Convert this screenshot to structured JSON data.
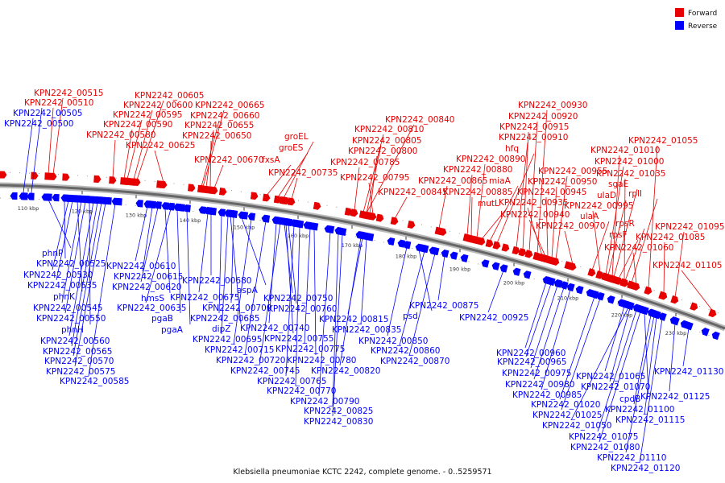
{
  "caption": "Klebsiella pneumoniae KCTC 2242, complete genome. - 0..5259571",
  "legend": [
    {
      "label": "Forward",
      "color": "#e60000"
    },
    {
      "label": "Reverse",
      "color": "#0000ff"
    }
  ],
  "colors": {
    "forward": "#e60000",
    "reverse": "#0000ff",
    "backbone": "#666666"
  },
  "ticks": [
    "110 kbp",
    "120 kbp",
    "130 kbp",
    "140 kbp",
    "150 kbp",
    "160 kbp",
    "170 kbp",
    "180 kbp",
    "190 kbp",
    "200 kbp",
    "210 kbp",
    "220 kbp",
    "230 kbp"
  ],
  "forward_labels": [
    {
      "text": "KPN2242_00515",
      "ax": 42,
      "ay": 119,
      "gx": 66,
      "gy": 230
    },
    {
      "text": "KPN2242_00510",
      "ax": 30,
      "ay": 131,
      "gx": 60,
      "gy": 228
    },
    {
      "text": "KPN2242_00605",
      "ax": 167,
      "ay": 122,
      "gx": 170,
      "gy": 240
    },
    {
      "text": "KPN2242_00600",
      "ax": 153,
      "ay": 134,
      "gx": 166,
      "gy": 239
    },
    {
      "text": "KPN2242_00595",
      "ax": 140,
      "ay": 146,
      "gx": 158,
      "gy": 238
    },
    {
      "text": "KPN2242_00590",
      "ax": 128,
      "ay": 158,
      "gx": 154,
      "gy": 237
    },
    {
      "text": "KPN2242_00580",
      "ax": 107,
      "ay": 171,
      "gx": 140,
      "gy": 236
    },
    {
      "text": "KPN2242_00625",
      "ax": 156,
      "ay": 184,
      "gx": 203,
      "gy": 243
    },
    {
      "text": "KPN2242_00665",
      "ax": 242,
      "ay": 134,
      "gx": 252,
      "gy": 250
    },
    {
      "text": "KPN2242_00660",
      "ax": 236,
      "ay": 147,
      "gx": 250,
      "gy": 250
    },
    {
      "text": "KPN2242_00655",
      "ax": 229,
      "ay": 159,
      "gx": 256,
      "gy": 251
    },
    {
      "text": "KPN2242_00650",
      "ax": 226,
      "ay": 172,
      "gx": 261,
      "gy": 252
    },
    {
      "text": "KPN2242_00670",
      "ax": 241,
      "ay": 202,
      "gx": 266,
      "gy": 252
    },
    {
      "text": "fxsA",
      "ax": 325,
      "ay": 202,
      "gx": 331,
      "gy": 264
    },
    {
      "text": "groEL",
      "ax": 353,
      "ay": 173,
      "gx": 352,
      "gy": 268
    },
    {
      "text": "groES",
      "ax": 346,
      "ay": 187,
      "gx": 345,
      "gy": 267
    },
    {
      "text": "KPN2242_00735",
      "ax": 333,
      "ay": 218,
      "gx": 362,
      "gy": 270
    },
    {
      "text": "KPN2242_00840",
      "ax": 478,
      "ay": 152,
      "gx": 455,
      "gy": 282
    },
    {
      "text": "KPN2242_00810",
      "ax": 440,
      "ay": 164,
      "gx": 451,
      "gy": 281
    },
    {
      "text": "KPN2242_00805",
      "ax": 437,
      "ay": 178,
      "gx": 455,
      "gy": 282
    },
    {
      "text": "KPN2242_00800",
      "ax": 432,
      "ay": 191,
      "gx": 459,
      "gy": 282
    },
    {
      "text": "KPN2242_00785",
      "ax": 410,
      "ay": 205,
      "gx": 440,
      "gy": 279
    },
    {
      "text": "KPN2242_00795",
      "ax": 422,
      "ay": 224,
      "gx": 463,
      "gy": 283
    },
    {
      "text": "KPN2242_00845",
      "ax": 469,
      "ay": 242,
      "gx": 490,
      "gy": 297
    },
    {
      "text": "KPN2242_00930",
      "ax": 643,
      "ay": 134,
      "gx": 667,
      "gy": 327
    },
    {
      "text": "KPN2242_00920",
      "ax": 631,
      "ay": 148,
      "gx": 657,
      "gy": 326
    },
    {
      "text": "KPN2242_00915",
      "ax": 620,
      "ay": 161,
      "gx": 649,
      "gy": 324
    },
    {
      "text": "KPN2242_00910",
      "ax": 619,
      "ay": 174,
      "gx": 641,
      "gy": 323
    },
    {
      "text": "hfq",
      "ax": 627,
      "ay": 188,
      "gx": 617,
      "gy": 316
    },
    {
      "text": "KPN2242_00890",
      "ax": 566,
      "ay": 201,
      "gx": 592,
      "gy": 313
    },
    {
      "text": "KPN2242_00880",
      "ax": 550,
      "ay": 214,
      "gx": 580,
      "gy": 312
    },
    {
      "text": "KPN2242_00865",
      "ax": 519,
      "ay": 228,
      "gx": 545,
      "gy": 307
    },
    {
      "text": "miaA",
      "ax": 607,
      "ay": 228,
      "gx": 608,
      "gy": 315
    },
    {
      "text": "KPN2242_00885",
      "ax": 550,
      "ay": 242,
      "gx": 585,
      "gy": 313
    },
    {
      "text": "KPN2242_00935",
      "ax": 619,
      "ay": 255,
      "gx": 673,
      "gy": 330
    },
    {
      "text": "mutL",
      "ax": 593,
      "ay": 256,
      "gx": 598,
      "gy": 314
    },
    {
      "text": "KPN2242_00955",
      "ax": 668,
      "ay": 216,
      "gx": 690,
      "gy": 337
    },
    {
      "text": "KPN2242_00950",
      "ax": 655,
      "ay": 229,
      "gx": 685,
      "gy": 334
    },
    {
      "text": "KPN2242_00945",
      "ax": 642,
      "ay": 242,
      "gx": 680,
      "gy": 332
    },
    {
      "text": "KPN2242_00940",
      "ax": 621,
      "ay": 270,
      "gx": 677,
      "gy": 331
    },
    {
      "text": "KPN2242_00970",
      "ax": 665,
      "ay": 284,
      "gx": 711,
      "gy": 348
    },
    {
      "text": "KPN2242_01055",
      "ax": 780,
      "ay": 178,
      "gx": 805,
      "gy": 370
    },
    {
      "text": "KPN2242_01010",
      "ax": 733,
      "ay": 190,
      "gx": 760,
      "gy": 356
    },
    {
      "text": "KPN2242_01000",
      "ax": 738,
      "ay": 204,
      "gx": 752,
      "gy": 355
    },
    {
      "text": "KPN2242_01035",
      "ax": 740,
      "ay": 219,
      "gx": 775,
      "gy": 362
    },
    {
      "text": "sgaE",
      "ax": 755,
      "ay": 232,
      "gx": 762,
      "gy": 357
    },
    {
      "text": "ulaD",
      "ax": 741,
      "ay": 246,
      "gx": 755,
      "gy": 356
    },
    {
      "text": "rplI",
      "ax": 780,
      "ay": 244,
      "gx": 784,
      "gy": 364
    },
    {
      "text": "KPN2242_00995",
      "ax": 700,
      "ay": 259,
      "gx": 745,
      "gy": 354
    },
    {
      "text": "ulaA",
      "ax": 720,
      "ay": 272,
      "gx": 735,
      "gy": 352
    },
    {
      "text": "rpsR",
      "ax": 764,
      "ay": 281,
      "gx": 776,
      "gy": 363
    },
    {
      "text": "rpsF",
      "ax": 756,
      "ay": 295,
      "gx": 768,
      "gy": 361
    },
    {
      "text": "KPN2242_01095",
      "ax": 813,
      "ay": 285,
      "gx": 838,
      "gy": 383
    },
    {
      "text": "KPN2242_01085",
      "ax": 789,
      "ay": 298,
      "gx": 824,
      "gy": 379
    },
    {
      "text": "KPN2242_01060",
      "ax": 750,
      "ay": 311,
      "gx": 790,
      "gy": 367
    },
    {
      "text": "KPN2242_01105",
      "ax": 810,
      "ay": 333,
      "gx": 885,
      "gy": 400
    }
  ],
  "reverse_labels": [
    {
      "text": "KPN2242_00505",
      "ax": 16,
      "ay": 144,
      "gx": 38,
      "gy": 238
    },
    {
      "text": "KPN2242_00500",
      "ax": 5,
      "ay": 157,
      "gx": 28,
      "gy": 236
    },
    {
      "text": "phnP",
      "ax": 52,
      "ay": 318,
      "gx": 60,
      "gy": 247
    },
    {
      "text": "KPN2242_00525",
      "ax": 45,
      "ay": 331,
      "gx": 80,
      "gy": 250
    },
    {
      "text": "KPN2242_00530",
      "ax": 29,
      "ay": 345,
      "gx": 85,
      "gy": 251
    },
    {
      "text": "KPN2242_00535",
      "ax": 34,
      "ay": 358,
      "gx": 90,
      "gy": 252
    },
    {
      "text": "phnK",
      "ax": 66,
      "ay": 372,
      "gx": 96,
      "gy": 253
    },
    {
      "text": "KPN2242_00545",
      "ax": 41,
      "ay": 386,
      "gx": 101,
      "gy": 254
    },
    {
      "text": "KPN2242_00550",
      "ax": 45,
      "ay": 399,
      "gx": 106,
      "gy": 255
    },
    {
      "text": "phnH",
      "ax": 76,
      "ay": 413,
      "gx": 111,
      "gy": 256
    },
    {
      "text": "KPN2242_00560",
      "ax": 50,
      "ay": 427,
      "gx": 116,
      "gy": 257
    },
    {
      "text": "KPN2242_00565",
      "ax": 53,
      "ay": 440,
      "gx": 121,
      "gy": 258
    },
    {
      "text": "KPN2242_00570",
      "ax": 55,
      "ay": 452,
      "gx": 126,
      "gy": 259
    },
    {
      "text": "KPN2242_00575",
      "ax": 57,
      "ay": 465,
      "gx": 131,
      "gy": 260
    },
    {
      "text": "KPN2242_00585",
      "ax": 74,
      "ay": 477,
      "gx": 143,
      "gy": 262
    },
    {
      "text": "KPN2242_00610",
      "ax": 132,
      "ay": 334,
      "gx": 183,
      "gy": 268
    },
    {
      "text": "KPN2242_00615",
      "ax": 141,
      "ay": 347,
      "gx": 189,
      "gy": 269
    },
    {
      "text": "KPN2242_00620",
      "ax": 139,
      "ay": 360,
      "gx": 196,
      "gy": 270
    },
    {
      "text": "hmsS",
      "ax": 175,
      "ay": 374,
      "gx": 205,
      "gy": 272
    },
    {
      "text": "KPN2242_00635",
      "ax": 145,
      "ay": 386,
      "gx": 212,
      "gy": 273
    },
    {
      "text": "pgaB",
      "ax": 188,
      "ay": 399,
      "gx": 220,
      "gy": 275
    },
    {
      "text": "pgaA",
      "ax": 200,
      "ay": 413,
      "gx": 232,
      "gy": 277
    },
    {
      "text": "KPN2242_00680",
      "ax": 226,
      "ay": 352,
      "gx": 262,
      "gy": 282
    },
    {
      "text": "KPN2242_00675",
      "ax": 211,
      "ay": 373,
      "gx": 258,
      "gy": 281
    },
    {
      "text": "aspA",
      "ax": 294,
      "ay": 364,
      "gx": 300,
      "gy": 290
    },
    {
      "text": "KPN2242_00700",
      "ax": 251,
      "ay": 386,
      "gx": 290,
      "gy": 288
    },
    {
      "text": "KPN2242_00685",
      "ax": 236,
      "ay": 399,
      "gx": 275,
      "gy": 285
    },
    {
      "text": "dipZ",
      "ax": 263,
      "ay": 412,
      "gx": 286,
      "gy": 287
    },
    {
      "text": "KPN2242_00695",
      "ax": 239,
      "ay": 425,
      "gx": 283,
      "gy": 286
    },
    {
      "text": "KPN2242_00715",
      "ax": 254,
      "ay": 438,
      "gx": 312,
      "gy": 292
    },
    {
      "text": "KPN2242_00720",
      "ax": 268,
      "ay": 451,
      "gx": 330,
      "gy": 295
    },
    {
      "text": "KPN2242_00745",
      "ax": 286,
      "ay": 464,
      "gx": 348,
      "gy": 298
    },
    {
      "text": "KPN2242_00765",
      "ax": 319,
      "ay": 477,
      "gx": 365,
      "gy": 301
    },
    {
      "text": "KPN2242_00770",
      "ax": 331,
      "ay": 489,
      "gx": 372,
      "gy": 302
    },
    {
      "text": "KPN2242_00740",
      "ax": 298,
      "ay": 411,
      "gx": 343,
      "gy": 297
    },
    {
      "text": "KPN2242_00750",
      "ax": 327,
      "ay": 374,
      "gx": 353,
      "gy": 299
    },
    {
      "text": "KPN2242_00760",
      "ax": 332,
      "ay": 387,
      "gx": 358,
      "gy": 300
    },
    {
      "text": "KPN2242_00755",
      "ax": 328,
      "ay": 424,
      "gx": 355,
      "gy": 299
    },
    {
      "text": "KPN2242_00775",
      "ax": 342,
      "ay": 437,
      "gx": 385,
      "gy": 305
    },
    {
      "text": "KPN2242_00780",
      "ax": 356,
      "ay": 451,
      "gx": 390,
      "gy": 306
    },
    {
      "text": "KPN2242_00790",
      "ax": 360,
      "ay": 502,
      "gx": 410,
      "gy": 309
    },
    {
      "text": "KPN2242_00825",
      "ax": 377,
      "ay": 514,
      "gx": 420,
      "gy": 311
    },
    {
      "text": "KPN2242_00830",
      "ax": 377,
      "ay": 527,
      "gx": 425,
      "gy": 312
    },
    {
      "text": "KPN2242_00815",
      "ax": 396,
      "ay": 400,
      "gx": 450,
      "gy": 316
    },
    {
      "text": "KPN2242_00835",
      "ax": 412,
      "ay": 413,
      "gx": 455,
      "gy": 317
    },
    {
      "text": "KPN2242_00820",
      "ax": 386,
      "ay": 464,
      "gx": 448,
      "gy": 316
    },
    {
      "text": "KPN2242_00850",
      "ax": 445,
      "ay": 427,
      "gx": 505,
      "gy": 325
    },
    {
      "text": "KPN2242_00860",
      "ax": 460,
      "ay": 439,
      "gx": 527,
      "gy": 329
    },
    {
      "text": "KPN2242_00870",
      "ax": 472,
      "ay": 452,
      "gx": 540,
      "gy": 331
    },
    {
      "text": "psd",
      "ax": 500,
      "ay": 396,
      "gx": 520,
      "gy": 328
    },
    {
      "text": "KPN2242_00875",
      "ax": 508,
      "ay": 383,
      "gx": 552,
      "gy": 333
    },
    {
      "text": "KPN2242_00925",
      "ax": 570,
      "ay": 398,
      "gx": 625,
      "gy": 348
    },
    {
      "text": "KPN2242_00960",
      "ax": 616,
      "ay": 442,
      "gx": 678,
      "gy": 363
    },
    {
      "text": "KPN2242_00965",
      "ax": 617,
      "ay": 453,
      "gx": 684,
      "gy": 364
    },
    {
      "text": "KPN2242_00975",
      "ax": 623,
      "ay": 467,
      "gx": 692,
      "gy": 365
    },
    {
      "text": "KPN2242_00980",
      "ax": 627,
      "ay": 481,
      "gx": 700,
      "gy": 366
    },
    {
      "text": "KPN2242_00985",
      "ax": 636,
      "ay": 494,
      "gx": 708,
      "gy": 367
    },
    {
      "text": "KPN2242_01020",
      "ax": 659,
      "ay": 506,
      "gx": 738,
      "gy": 378
    },
    {
      "text": "KPN2242_01025",
      "ax": 661,
      "ay": 519,
      "gx": 745,
      "gy": 380
    },
    {
      "text": "KPN2242_01050",
      "ax": 673,
      "ay": 532,
      "gx": 780,
      "gy": 387
    },
    {
      "text": "KPN2242_01065",
      "ax": 715,
      "ay": 471,
      "gx": 775,
      "gy": 386
    },
    {
      "text": "KPN2242_01070",
      "ax": 721,
      "ay": 484,
      "gx": 782,
      "gy": 388
    },
    {
      "text": "KPN2242_01075",
      "ax": 706,
      "ay": 546,
      "gx": 790,
      "gy": 390
    },
    {
      "text": "KPN2242_01080",
      "ax": 708,
      "ay": 559,
      "gx": 795,
      "gy": 392
    },
    {
      "text": "cpdB",
      "ax": 769,
      "ay": 499,
      "gx": 800,
      "gy": 393
    },
    {
      "text": "KPN2242_01100",
      "ax": 751,
      "ay": 512,
      "gx": 808,
      "gy": 395
    },
    {
      "text": "KPN2242_01115",
      "ax": 764,
      "ay": 525,
      "gx": 815,
      "gy": 396
    },
    {
      "text": "KPN2242_01110",
      "ax": 741,
      "ay": 572,
      "gx": 812,
      "gy": 396
    },
    {
      "text": "KPN2242_01120",
      "ax": 758,
      "ay": 585,
      "gx": 822,
      "gy": 398
    },
    {
      "text": "KPN2242_01125",
      "ax": 795,
      "ay": 496,
      "gx": 838,
      "gy": 403
    },
    {
      "text": "KPN2242_01130",
      "ax": 812,
      "ay": 465,
      "gx": 855,
      "gy": 408
    }
  ]
}
